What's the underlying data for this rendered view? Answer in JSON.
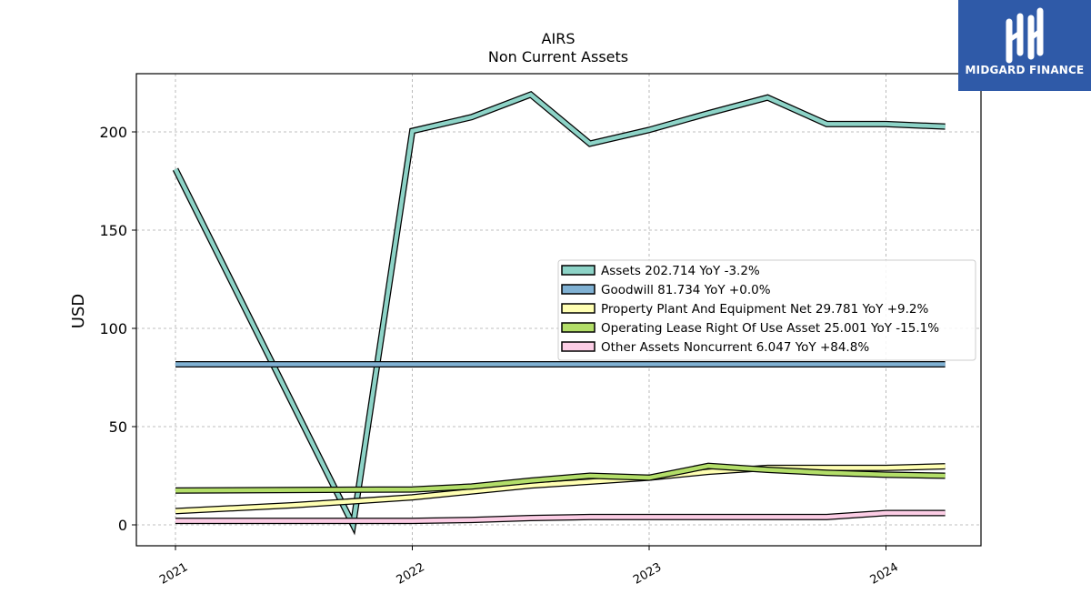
{
  "chart_data": {
    "type": "line",
    "title": "AIRS",
    "subtitle": "Non Current  Assets",
    "ylabel": "USD",
    "xlabel": "",
    "xlim": [
      2021.0,
      2024.4
    ],
    "ylim": [
      -10,
      230
    ],
    "x_ticks": [
      2021,
      2022,
      2023,
      2024
    ],
    "x_tick_labels": [
      "2021",
      "2022",
      "2023",
      "2024"
    ],
    "y_ticks": [
      0,
      50,
      100,
      150,
      200
    ],
    "y_tick_labels": [
      "0",
      "50",
      "100",
      "150",
      "200"
    ],
    "grid": true,
    "legend_position": "center-right",
    "series": [
      {
        "name": "Assets",
        "legend_label": "Assets  202.714 YoY -3.2%",
        "color": "#8dd3c7",
        "x": [
          2021.0,
          2021.75,
          2022.0,
          2022.25,
          2022.5,
          2022.75,
          2023.0,
          2023.25,
          2023.5,
          2023.75,
          2024.0,
          2024.25
        ],
        "y": [
          181,
          0,
          200.5,
          207.5,
          219,
          194,
          201,
          209.5,
          217.5,
          204,
          204,
          202.7
        ]
      },
      {
        "name": "Goodwill",
        "legend_label": "Goodwill  81.734 YoY +0.0%",
        "color": "#80b1d3",
        "x": [
          2021.0,
          2024.25
        ],
        "y": [
          81.7,
          81.7
        ]
      },
      {
        "name": "Property Plant And Equipment Net",
        "legend_label": "Property Plant And Equipment Net  29.781 YoY +9.2%",
        "color": "#ffffb3",
        "x": [
          2021.0,
          2021.5,
          2022.0,
          2022.25,
          2022.5,
          2022.75,
          2023.0,
          2023.25,
          2023.5,
          2023.75,
          2024.0,
          2024.25
        ],
        "y": [
          7,
          10,
          14,
          17,
          20,
          22,
          24,
          27,
          29,
          29,
          29,
          29.8
        ]
      },
      {
        "name": "Operating Lease Right Of Use Asset",
        "legend_label": "Operating Lease Right Of Use Asset  25.001 YoY -15.1%",
        "color": "#b3de69",
        "x": [
          2021.0,
          2022.0,
          2022.25,
          2022.5,
          2022.75,
          2023.0,
          2023.25,
          2023.5,
          2023.75,
          2024.0,
          2024.25
        ],
        "y": [
          17.5,
          18,
          19.5,
          22.5,
          25,
          24,
          30,
          28,
          26.5,
          25.5,
          25
        ]
      },
      {
        "name": "Other Assets Noncurrent",
        "legend_label": "Other Assets Noncurrent  6.047 YoY +84.8%",
        "color": "#fccde5",
        "x": [
          2021.0,
          2022.0,
          2022.25,
          2022.5,
          2022.75,
          2023.0,
          2023.25,
          2023.5,
          2023.75,
          2024.0,
          2024.25
        ],
        "y": [
          2,
          2,
          2.5,
          3.5,
          4,
          4,
          4,
          4,
          4,
          6,
          6
        ]
      }
    ]
  },
  "logo": {
    "text": "MIDGARD FINANCE",
    "background": "#2f5aa8"
  }
}
